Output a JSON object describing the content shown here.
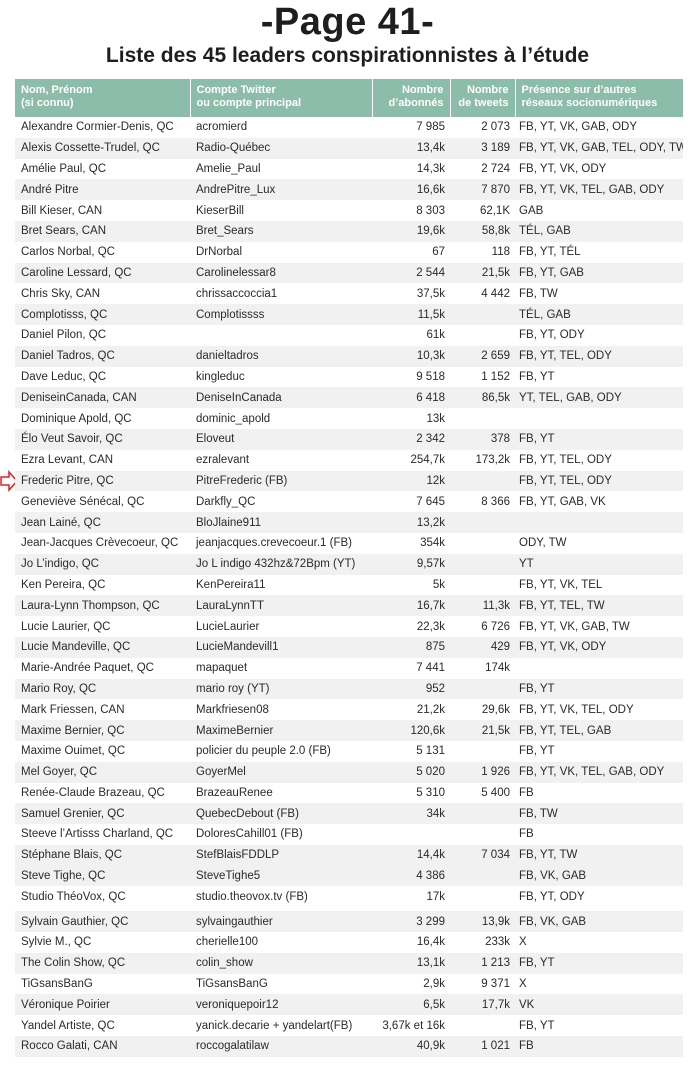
{
  "page_title": "-Page 41-",
  "subtitle": "Liste des 45 leaders conspirationnistes à l’étude",
  "header_color": "#8cbcaa",
  "marker": {
    "icon": "red-outline-arrow-right",
    "color": "#e02020",
    "row": "Frederic Pitre, QC"
  },
  "columns": [
    {
      "line1": "Nom, Prénom",
      "line2": "(si connu)"
    },
    {
      "line1": "Compte Twitter",
      "line2": "ou compte principal"
    },
    {
      "line1": "Nombre",
      "line2": "d’abonnés"
    },
    {
      "line1": "Nombre",
      "line2": "de tweets"
    },
    {
      "line1": "Présence sur d’autres",
      "line2": "réseaux socionumériques"
    }
  ],
  "rows": [
    [
      "Alexandre Cormier-Denis, QC",
      "acromierd",
      "7 985",
      "2 073",
      "FB, YT, VK, GAB, ODY"
    ],
    [
      "Alexis Cossette-Trudel, QC",
      "Radio-Québec",
      "13,4k",
      "3 189",
      "FB, YT, VK, GAB, TEL, ODY, TW"
    ],
    [
      "Amélie Paul, QC",
      "Amelie_Paul",
      "14,3k",
      "2 724",
      "FB, YT, VK, ODY"
    ],
    [
      "André Pitre",
      "AndrePitre_Lux",
      "16,6k",
      "7 870",
      "FB, YT, VK, TEL, GAB, ODY"
    ],
    [
      "Bill Kieser, CAN",
      "KieserBill",
      "8 303",
      "62,1K",
      "GAB"
    ],
    [
      "Bret Sears, CAN",
      "Bret_Sears",
      "19,6k",
      "58,8k",
      "TÉL, GAB"
    ],
    [
      "Carlos Norbal, QC",
      "DrNorbal",
      "67",
      "118",
      "FB, YT, TÉL"
    ],
    [
      "Caroline Lessard, QC",
      "Carolinelessar8",
      "2 544",
      "21,5k",
      "FB, YT, GAB"
    ],
    [
      "Chris Sky, CAN",
      "chrissaccoccia1",
      "37,5k",
      "4 442",
      "FB, TW"
    ],
    [
      "Complotisss, QC",
      "Complotissss",
      "11,5k",
      "",
      "TÉL, GAB"
    ],
    [
      "Daniel Pilon, QC",
      "",
      "61k",
      "",
      "FB, YT, ODY"
    ],
    [
      "Daniel Tadros, QC",
      "danieltadros",
      "10,3k",
      "2 659",
      "FB, YT, TEL, ODY"
    ],
    [
      "Dave Leduc, QC",
      "kingleduc",
      "9 518",
      "1 152",
      "FB, YT"
    ],
    [
      "DeniseinCanada, CAN",
      "DeniseInCanada",
      "6 418",
      "86,5k",
      "YT, TEL, GAB, ODY"
    ],
    [
      "Dominique Apold, QC",
      "dominic_apold",
      "13k",
      "",
      ""
    ],
    [
      "Élo Veut Savoir, QC",
      "Eloveut",
      "2 342",
      "378",
      "FB, YT"
    ],
    [
      "Ezra Levant, CAN",
      "ezralevant",
      "254,7k",
      "173,2k",
      "FB, YT, TEL, ODY"
    ],
    [
      "Frederic Pitre, QC",
      "PitreFrederic (FB)",
      "12k",
      "",
      "FB, YT, TEL, ODY"
    ],
    [
      "Geneviève Sénécal, QC",
      "Darkfly_QC",
      "7 645",
      "8 366",
      "FB, YT, GAB, VK"
    ],
    [
      "Jean Lainé, QC",
      "BloJlaine911",
      "13,2k",
      "",
      ""
    ],
    [
      "Jean-Jacques Crèvecoeur, QC",
      "jeanjacques.crevecoeur.1 (FB)",
      "354k",
      "",
      "ODY, TW"
    ],
    [
      "Jo L’indigo, QC",
      "Jo L indigo 432hz&72Bpm (YT)",
      "9,57k",
      "",
      "YT"
    ],
    [
      "Ken Pereira, QC",
      "KenPereira11",
      "5k",
      "",
      "FB, YT, VK, TEL"
    ],
    [
      "Laura-Lynn Thompson, QC",
      "LauraLynnTT",
      "16,7k",
      "11,3k",
      "FB, YT, TEL, TW"
    ],
    [
      "Lucie Laurier, QC",
      "LucieLaurier",
      "22,3k",
      "6 726",
      "FB, YT, VK, GAB, TW"
    ],
    [
      "Lucie Mandeville, QC",
      "LucieMandevill1",
      "875",
      "429",
      "FB, YT, VK, ODY"
    ],
    [
      "Marie-Andrée Paquet, QC",
      "mapaquet",
      "7 441",
      "174k",
      ""
    ],
    [
      "Mario Roy, QC",
      "mario roy (YT)",
      "952",
      "",
      "FB, YT"
    ],
    [
      "Mark Friessen, CAN",
      "Markfriesen08",
      "21,2k",
      "29,6k",
      "FB, YT, VK, TEL, ODY"
    ],
    [
      "Maxime Bernier, QC",
      "MaximeBernier",
      "120,6k",
      "21,5k",
      "FB, YT, TEL, GAB"
    ],
    [
      "Maxime Ouimet, QC",
      "policier du peuple 2.0 (FB)",
      "5 131",
      "",
      "FB, YT"
    ],
    [
      "Mel Goyer, QC",
      "GoyerMel",
      "5 020",
      "1 926",
      "FB, YT, VK, TEL, GAB, ODY"
    ],
    [
      "Renée-Claude Brazeau, QC",
      "BrazeauRenee",
      "5 310",
      "5 400",
      "FB"
    ],
    [
      "Samuel Grenier, QC",
      "QuebecDebout (FB)",
      "34k",
      "",
      "FB, TW"
    ],
    [
      "Steeve l’Artisss Charland, QC",
      "DoloresCahill01 (FB)",
      "",
      "",
      "FB"
    ],
    [
      "Stéphane Blais, QC",
      "StefBlaisFDDLP",
      "14,4k",
      "7 034",
      "FB, YT, TW"
    ],
    [
      "Steve Tighe, QC",
      "SteveTighe5",
      "4 386",
      "",
      "FB, VK, GAB"
    ],
    [
      "Studio ThéoVox, QC",
      "studio.theovox.tv (FB)",
      "17k",
      "",
      "FB, YT, ODY"
    ],
    [
      "Sylvain Gauthier, QC",
      "sylvaingauthier",
      "3 299",
      "13,9k",
      "FB, VK, GAB"
    ],
    [
      "Sylvie M., QC",
      "cherielle100",
      "16,4k",
      "233k",
      "X"
    ],
    [
      "The Colin Show, QC",
      "colin_show",
      "13,1k",
      "1 213",
      "FB, YT"
    ],
    [
      "TiGsansBanG",
      "TiGsansBanG",
      "2,9k",
      "9 371",
      "X"
    ],
    [
      "Véronique Poirier",
      "veroniquepoir12",
      "6,5k",
      "17,7k",
      "VK"
    ],
    [
      "Yandel Artiste, QC",
      "yanick.decarie + yandelart(FB)",
      "3,67k et 16k",
      "",
      "FB, YT"
    ],
    [
      "Rocco Galati, CAN",
      "roccogalatilaw",
      "40,9k",
      "1 021",
      "FB"
    ]
  ]
}
